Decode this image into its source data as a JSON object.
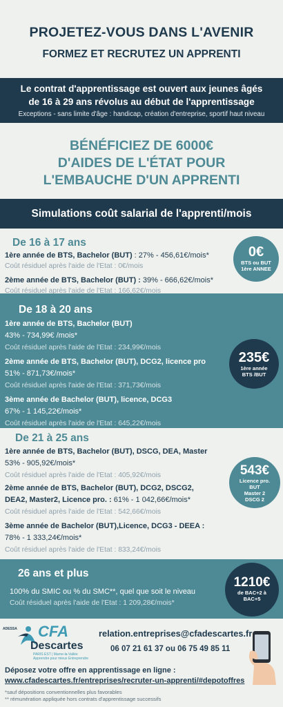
{
  "header": {
    "title": "PROJETEZ-VOUS DANS L'AVENIR",
    "subtitle": "FORMEZ ET RECRUTEZ UN APPRENTI"
  },
  "contract": {
    "line1": "Le contrat d'apprentissage est ouvert aux jeunes âgés",
    "line2": "de 16 à 29 ans révolus au début de l'apprentissage",
    "exceptions": "Exceptions - sans limite d'âge : handicap, création d'entreprise, sportif haut niveau"
  },
  "aides": {
    "line1": "BÉNÉFICIEZ DE 6000€",
    "line2": "D'AIDES DE L'ÉTAT POUR",
    "line3": "L'EMBAUCHE D'UN APPRENTI"
  },
  "simulations_title": "Simulations coût salarial de l'apprenti/mois",
  "sections": {
    "s16": {
      "heading": "De 16 à 17 ans",
      "y1_label": "1ère année de BTS, Bachelor (BUT)",
      "y1_value": " : 27% - 456,61€/mois*",
      "y1_res": "Coût résiduel après l'aide de l'Etat : 0€/mois",
      "y2_label": "2ème année de BTS, Bachelor (BUT) :",
      "y2_value": " 39% - 666,62€/mois*",
      "y2_res": "Coût résiduel après l'aide de l'Etat : 166,62€/mois",
      "badge_big": "0€",
      "badge_small1": "BTS ou BUT",
      "badge_small2": "1ère ANNEE"
    },
    "s18": {
      "heading": "De 18 à 20 ans",
      "y1_label": "1ère année de BTS, Bachelor (BUT)",
      "y1_value": "43% - 734,99€ /mois*",
      "y1_res": "Coût résiduel après l'aide de l'Etat : 234,99€/mois",
      "y2_label": "2ème année de BTS, Bachelor (BUT), DCG2, licence pro",
      "y2_value": "51% - 871,73€/mois*",
      "y2_res": "Coût résiduel après l'aide de l'Etat : 371,73€/mois",
      "y3_label": "3ème année de  Bachelor (BUT), licence, DCG3",
      "y3_value": "67% - 1 145,22€/mois*",
      "y3_res": "Coût résiduel après l'aide de l'Etat : 645,22€/mois",
      "badge_big": "235€",
      "badge_small1": "1ère année",
      "badge_small2": "BTS /BUT"
    },
    "s21": {
      "heading": "De 21 à 25 ans",
      "y1_label": "1ère année de BTS, Bachelor (BUT), DSCG, DEA, Master",
      "y1_value": "53% - 905,92€/mois*",
      "y1_res": "Coût résiduel après l'aide de l'Etat : 405,92€/mois",
      "y2_label": "2ème année de BTS, Bachelor (BUT), DCG2, DSCG2,",
      "y2_label_b": "DEA2, Master2, Licence pro. :",
      "y2_value": " 61% - 1 042,66€/mois*",
      "y2_res": "Coût résiduel après l'aide de l'Etat : 542,66€/mois",
      "y3_label": "3ème année de Bachelor (BUT),Licence, DCG3 - DEEA :",
      "y3_value": "78% - 1 333,24€/mois*",
      "y3_res": "Coût résiduel après l'aide de l'Etat : 833,24€/mois",
      "badge_big": "543€",
      "badge_small1": "Licence pro.",
      "badge_small2": "BUT",
      "badge_small3": "Master 2",
      "badge_small4": "DSCG 2"
    },
    "s26": {
      "heading": "26 ans et plus",
      "line": "100% du SMIC ou % du SMC**, quel que soit le niveau",
      "res": "Coût résiduel après l'aide de l'Etat : 1 209,28€/mois*",
      "badge_big": "1210€",
      "badge_small1": "de BAC+2  à",
      "badge_small2": "BAC+5"
    }
  },
  "footer": {
    "logo_cfa": "CFA",
    "logo_name": "Descartes",
    "logo_tagline": "PARIS EST | Marne-la-Vallée",
    "logo_tagline2": "Apprendre pour mieux Entreprendre",
    "logo_side": "ADESSA",
    "email": "relation.entreprises@cfadescartes.fr",
    "phone": "06 07 21 61 37 ou 06 75 49 85 11",
    "deposit": "Déposez votre offre en apprentissage en ligne :",
    "url": "www.cfadescartes.fr/entreprises/recruter-un-apprenti/#depotoffres",
    "note1": "*sauf dépositions conventionnelles plus favorables",
    "note2": "** rémunération appliquée hors contrats d'apprentissage successifs"
  },
  "colors": {
    "navy": "#1f3a4d",
    "teal": "#4e8a95",
    "background": "#eef1ee"
  }
}
